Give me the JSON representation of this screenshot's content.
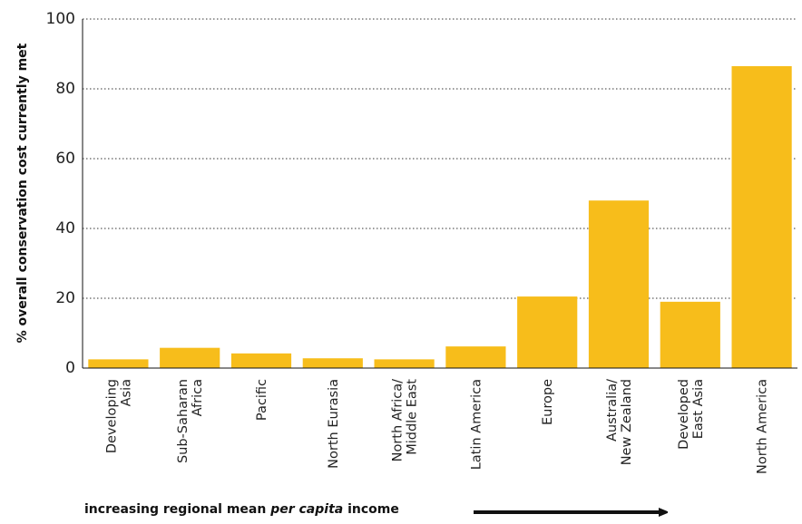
{
  "chart_data": {
    "type": "bar",
    "categories": [
      [
        "Developing",
        "Asia"
      ],
      [
        "Sub-Saharan",
        "Africa"
      ],
      [
        "Pacific"
      ],
      [
        "North Eurasia"
      ],
      [
        "North Africa/",
        "Middle East"
      ],
      [
        "Latin America"
      ],
      [
        "Europe"
      ],
      [
        "Australia/",
        "New Zealand"
      ],
      [
        "Developed",
        "East Asia"
      ],
      [
        "North America"
      ]
    ],
    "values": [
      2.5,
      5.8,
      4.2,
      2.8,
      2.5,
      6.2,
      20.5,
      48,
      19,
      86.5
    ],
    "ylabel": "% overall conservation cost currently met",
    "ylim": [
      0,
      100
    ],
    "yticks": [
      0,
      20,
      40,
      60,
      80,
      100
    ],
    "grid": "horizontal dotted",
    "bar_color": "#f7bd1b",
    "footnote": {
      "prefix": "increasing regional mean ",
      "italic": "per capita",
      "suffix": " income"
    }
  }
}
